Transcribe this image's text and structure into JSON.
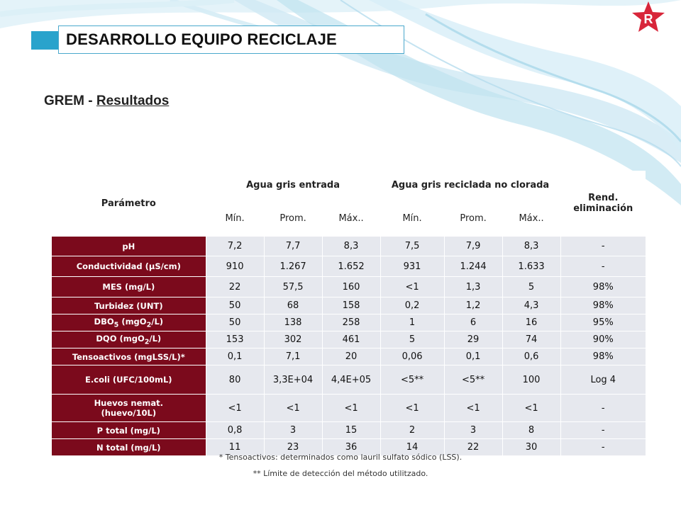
{
  "slide": {
    "title": "DESARROLLO EQUIPO RECICLAJE",
    "subtitle_prefix": "GREM - ",
    "subtitle_link": "Resultados",
    "logo_letter": "R",
    "colors": {
      "accent": "#29a3cc",
      "param_bg": "#7b0a1c",
      "cell_bg": "#e6e8ee",
      "logo": "#d8263a"
    }
  },
  "table": {
    "header": {
      "parametro": "Parámetro",
      "group1": "Agua gris entrada",
      "group2": "Agua gris reciclada no clorada",
      "rend": "Rend. eliminación",
      "sub": [
        "Mín.",
        "Prom.",
        "Máx..",
        "Mín.",
        "Prom.",
        "Máx.."
      ]
    },
    "rows": [
      {
        "param": "pH",
        "values": [
          "7,2",
          "7,7",
          "8,3",
          "7,5",
          "7,9",
          "8,3",
          "-"
        ]
      },
      {
        "param": "Conductividad (µS/cm)",
        "values": [
          "910",
          "1.267",
          "1.652",
          "931",
          "1.244",
          "1.633",
          "-"
        ]
      },
      {
        "param": "MES (mg/L)",
        "values": [
          "22",
          "57,5",
          "160",
          "<1",
          "1,3",
          "5",
          "98%"
        ]
      },
      {
        "param": "Turbidez (UNT)",
        "values": [
          "50",
          "68",
          "158",
          "0,2",
          "1,2",
          "4,3",
          "98%"
        ]
      },
      {
        "param_main": "DBO",
        "param_sub": "5",
        "param_mid": " (mgO",
        "param_sub2": "2",
        "param_end": "/L)",
        "values": [
          "50",
          "138",
          "258",
          "1",
          "6",
          "16",
          "95%"
        ]
      },
      {
        "param_main": "DQO (mgO",
        "param_sub2": "2",
        "param_end": "/L)",
        "values": [
          "153",
          "302",
          "461",
          "5",
          "29",
          "74",
          "90%"
        ]
      },
      {
        "param": "Tensoactivos (mgLSS/L)*",
        "values": [
          "0,1",
          "7,1",
          "20",
          "0,06",
          "0,1",
          "0,6",
          "98%"
        ]
      },
      {
        "param": "E.coli (UFC/100mL)",
        "values": [
          "80",
          "3,3E+04",
          "4,4E+05",
          "<5**",
          "<5**",
          "100",
          "Log 4"
        ]
      },
      {
        "param": "Huevos nemat.(huevo/10L)",
        "values": [
          "<1",
          "<1",
          "<1",
          "<1",
          "<1",
          "<1",
          "-"
        ]
      },
      {
        "param": "P total (mg/L)",
        "values": [
          "0,8",
          "3",
          "15",
          "2",
          "3",
          "8",
          "-"
        ]
      },
      {
        "param": "N total (mg/L)",
        "values": [
          "11",
          "23",
          "36",
          "14",
          "22",
          "30",
          "-"
        ]
      }
    ]
  },
  "footnotes": [
    "* Tensoactivos: determinados como lauril sulfato sódico (LSS).",
    "** Límite de detección del método utilitzado."
  ]
}
